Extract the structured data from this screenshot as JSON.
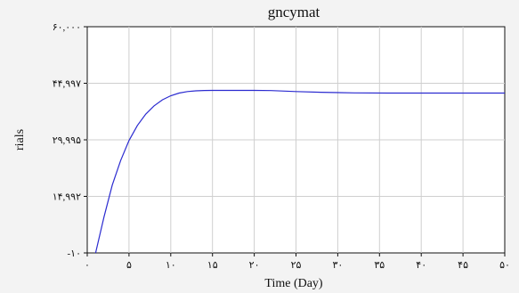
{
  "chart_data": {
    "type": "line",
    "title": "gncymat",
    "xlabel": "Time (Day)",
    "ylabel": "rials",
    "xlim": [
      0,
      50
    ],
    "ylim": [
      -10,
      60000
    ],
    "x_ticks": [
      0,
      5,
      10,
      15,
      20,
      25,
      30,
      35,
      40,
      45,
      50
    ],
    "x_tick_labels": [
      "۰",
      "۵",
      "۱۰",
      "۱۵",
      "۲۰",
      "۲۵",
      "۳۰",
      "۳۵",
      "۴۰",
      "۴۵",
      "۵۰"
    ],
    "y_ticks": [
      -10,
      14992,
      29995,
      44997,
      60000
    ],
    "y_tick_labels": [
      "-۱۰",
      "۱۴,۹۹۲",
      "۲۹,۹۹۵",
      "۴۴,۹۹۷",
      "۶۰,۰۰۰"
    ],
    "grid": true,
    "series": [
      {
        "color": "#2b2bd0",
        "x": [
          1,
          2,
          3,
          4,
          5,
          6,
          7,
          8,
          9,
          10,
          11,
          12,
          13,
          14,
          15,
          16,
          18,
          20,
          22,
          25,
          28,
          32,
          36,
          40,
          45,
          50
        ],
        "y": [
          -10,
          9500,
          18000,
          24500,
          29800,
          33800,
          36800,
          39000,
          40600,
          41700,
          42400,
          42800,
          43000,
          43080,
          43100,
          43100,
          43100,
          43100,
          43050,
          42800,
          42600,
          42450,
          42400,
          42400,
          42400,
          42400
        ]
      }
    ]
  }
}
